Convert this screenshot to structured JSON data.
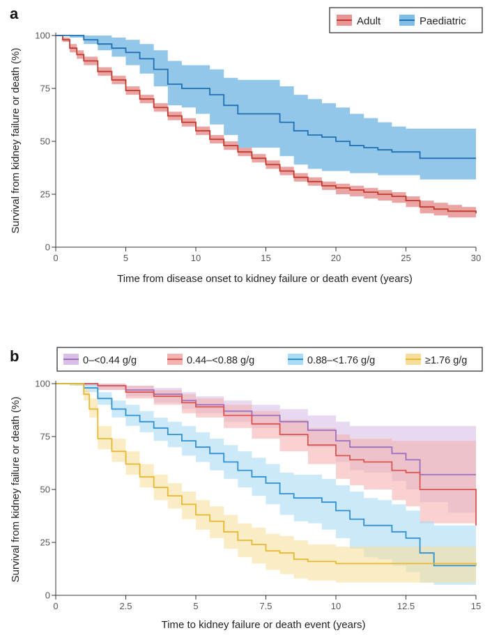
{
  "chart_data": [
    {
      "panel": "a",
      "type": "line",
      "xlabel": "Time from disease onset to kidney failure or death event (years)",
      "ylabel": "Survival from kidney failure or death (%)",
      "xlim": [
        0,
        30
      ],
      "ylim": [
        0,
        100
      ],
      "xticks": [
        0,
        5,
        10,
        15,
        20,
        25,
        30
      ],
      "yticks": [
        0,
        25,
        50,
        75,
        100
      ],
      "legend_position": "top-right",
      "series": [
        {
          "name": "Adult",
          "color": "#c0392b",
          "band_color": "#e89494",
          "x": [
            0,
            0.5,
            1,
            1.5,
            2,
            3,
            4,
            5,
            6,
            7,
            8,
            9,
            10,
            11,
            12,
            13,
            14,
            15,
            16,
            17,
            18,
            19,
            20,
            21,
            22,
            23,
            24,
            25,
            26,
            27,
            28,
            29,
            30
          ],
          "y": [
            100,
            98,
            94,
            91,
            88,
            83,
            79,
            74,
            70,
            66,
            62,
            59,
            55,
            51,
            48,
            45,
            42,
            39,
            36,
            33,
            31,
            29,
            28,
            27,
            26,
            25,
            24,
            22,
            19,
            18,
            17,
            17,
            16
          ],
          "lower": [
            100,
            97,
            92,
            89,
            86,
            81,
            77,
            72,
            68,
            64,
            60,
            57,
            53,
            49,
            46,
            43,
            40,
            37,
            34,
            31,
            29,
            27,
            25,
            24,
            23,
            22,
            21,
            19,
            16,
            15,
            14,
            14,
            14
          ],
          "upper": [
            100,
            99,
            96,
            93,
            90,
            85,
            81,
            76,
            72,
            68,
            64,
            61,
            57,
            53,
            50,
            47,
            44,
            41,
            38,
            35,
            33,
            31,
            30,
            29,
            28,
            27,
            26,
            24,
            22,
            21,
            20,
            19,
            18
          ]
        },
        {
          "name": "Paediatric",
          "color": "#1f6fb2",
          "band_color": "#7fbde6",
          "x": [
            0,
            1,
            2,
            3,
            4,
            5,
            6,
            7,
            8,
            9,
            10,
            11,
            12,
            13,
            14,
            15,
            16,
            17,
            18,
            19,
            20,
            21,
            22,
            23,
            24,
            25,
            26,
            27,
            28,
            29,
            30
          ],
          "y": [
            100,
            100,
            98,
            96,
            94,
            92,
            89,
            84,
            77,
            75,
            75,
            72,
            67,
            63,
            63,
            63,
            59,
            55,
            53,
            52,
            50,
            48,
            47,
            46,
            45,
            45,
            42,
            42,
            42,
            42,
            42
          ],
          "lower": [
            100,
            99,
            96,
            93,
            90,
            86,
            82,
            76,
            67,
            66,
            63,
            58,
            53,
            47,
            47,
            47,
            43,
            39,
            37,
            36,
            36,
            35,
            35,
            34,
            34,
            34,
            32,
            32,
            32,
            32,
            32
          ],
          "upper": [
            100,
            100,
            100,
            100,
            99,
            98,
            96,
            93,
            88,
            86,
            86,
            84,
            80,
            79,
            79,
            79,
            76,
            72,
            70,
            68,
            66,
            63,
            61,
            59,
            57,
            56,
            56,
            56,
            56,
            56,
            56
          ]
        }
      ]
    },
    {
      "panel": "b",
      "type": "line",
      "xlabel": "Time to kidney failure or death event (years)",
      "ylabel": "Survival from kidney failure or death (%)",
      "xlim": [
        0,
        15
      ],
      "ylim": [
        0,
        100
      ],
      "xticks": [
        0,
        2.5,
        5,
        7.5,
        10,
        12.5,
        15
      ],
      "xtick_labels": [
        "0",
        "2.5",
        "5",
        "7.5",
        "10",
        "12.5",
        "15"
      ],
      "yticks": [
        0,
        25,
        50,
        75,
        100
      ],
      "legend_position": "top",
      "series": [
        {
          "name": "0–<0.44 g/g",
          "color": "#9b6fbf",
          "band_color": "#d7bfe6",
          "x": [
            0,
            0.7,
            1.5,
            2.5,
            3.5,
            4.5,
            5,
            6,
            7,
            8,
            9,
            10,
            10.5,
            11,
            12,
            12.5,
            13,
            14,
            15
          ],
          "y": [
            100,
            100,
            99,
            97,
            95,
            92,
            90,
            87,
            85,
            82,
            78,
            73,
            70,
            70,
            67,
            64,
            57,
            57,
            57
          ],
          "lower": [
            100,
            99,
            97,
            94,
            91,
            88,
            86,
            82,
            79,
            75,
            70,
            63,
            59,
            58,
            54,
            50,
            44,
            39,
            35
          ],
          "upper": [
            100,
            100,
            100,
            99,
            98,
            96,
            94,
            92,
            90,
            88,
            85,
            82,
            80,
            80,
            80,
            80,
            80,
            80,
            80
          ]
        },
        {
          "name": "0.44–<0.88 g/g",
          "color": "#d9534f",
          "band_color": "#f3b3b0",
          "x": [
            0,
            0.7,
            1.5,
            2.5,
            3.5,
            4.5,
            5,
            6,
            7,
            8,
            9,
            10,
            10.5,
            11,
            12,
            12.5,
            13,
            14,
            15
          ],
          "y": [
            100,
            100,
            99,
            96,
            94,
            91,
            89,
            85,
            81,
            76,
            71,
            66,
            64,
            63,
            59,
            58,
            50,
            50,
            33
          ],
          "lower": [
            100,
            99,
            97,
            93,
            90,
            86,
            84,
            79,
            74,
            68,
            62,
            55,
            52,
            50,
            45,
            42,
            34,
            34,
            18
          ],
          "upper": [
            100,
            100,
            100,
            99,
            97,
            95,
            93,
            90,
            87,
            83,
            79,
            76,
            74,
            74,
            73,
            73,
            73,
            73,
            73
          ]
        },
        {
          "name": "0.88–<1.76 g/g",
          "color": "#2e90d1",
          "band_color": "#a9dbf5",
          "x": [
            0,
            0.5,
            1,
            1.5,
            2,
            2.5,
            3,
            3.5,
            4,
            4.5,
            5,
            5.5,
            6,
            6.5,
            7,
            7.5,
            8,
            8.5,
            9,
            9.5,
            10,
            10.5,
            11,
            11.5,
            12,
            12.5,
            13,
            13.5,
            14,
            14.5,
            15
          ],
          "y": [
            100,
            100,
            98,
            93,
            88,
            85,
            82,
            79,
            76,
            73,
            70,
            67,
            63,
            59,
            56,
            53,
            48,
            46,
            46,
            44,
            40,
            36,
            33,
            33,
            30,
            27,
            20,
            14,
            14,
            14,
            14
          ],
          "lower": [
            100,
            99,
            96,
            90,
            84,
            80,
            77,
            73,
            70,
            66,
            63,
            59,
            55,
            51,
            47,
            43,
            38,
            35,
            34,
            31,
            27,
            22,
            18,
            17,
            14,
            11,
            6,
            5,
            5,
            5,
            5
          ],
          "upper": [
            100,
            100,
            100,
            96,
            92,
            90,
            87,
            84,
            82,
            80,
            77,
            74,
            71,
            68,
            65,
            62,
            58,
            57,
            57,
            55,
            52,
            49,
            46,
            45,
            43,
            40,
            35,
            33,
            33,
            33,
            33
          ]
        },
        {
          "name": "≥1.76 g/g",
          "color": "#e8b830",
          "band_color": "#f6df9c",
          "x": [
            0,
            0.5,
            1,
            1.2,
            1.5,
            2,
            2.5,
            3,
            3.5,
            4,
            4.5,
            5,
            5.5,
            6,
            6.5,
            7,
            7.5,
            8,
            8.5,
            9,
            10,
            11,
            12,
            13,
            14,
            15
          ],
          "y": [
            100,
            100,
            95,
            88,
            74,
            68,
            62,
            56,
            51,
            47,
            43,
            38,
            35,
            30,
            26,
            24,
            21,
            20,
            17,
            16,
            15,
            15,
            15,
            15,
            15,
            14
          ],
          "lower": [
            100,
            99,
            92,
            84,
            69,
            63,
            57,
            51,
            45,
            41,
            36,
            31,
            27,
            22,
            18,
            15,
            12,
            10,
            8,
            7,
            6,
            6,
            6,
            6,
            6,
            5
          ],
          "upper": [
            100,
            100,
            98,
            93,
            80,
            74,
            68,
            62,
            57,
            53,
            49,
            45,
            42,
            38,
            34,
            32,
            29,
            28,
            26,
            24,
            23,
            23,
            23,
            23,
            23,
            23
          ]
        }
      ]
    }
  ]
}
